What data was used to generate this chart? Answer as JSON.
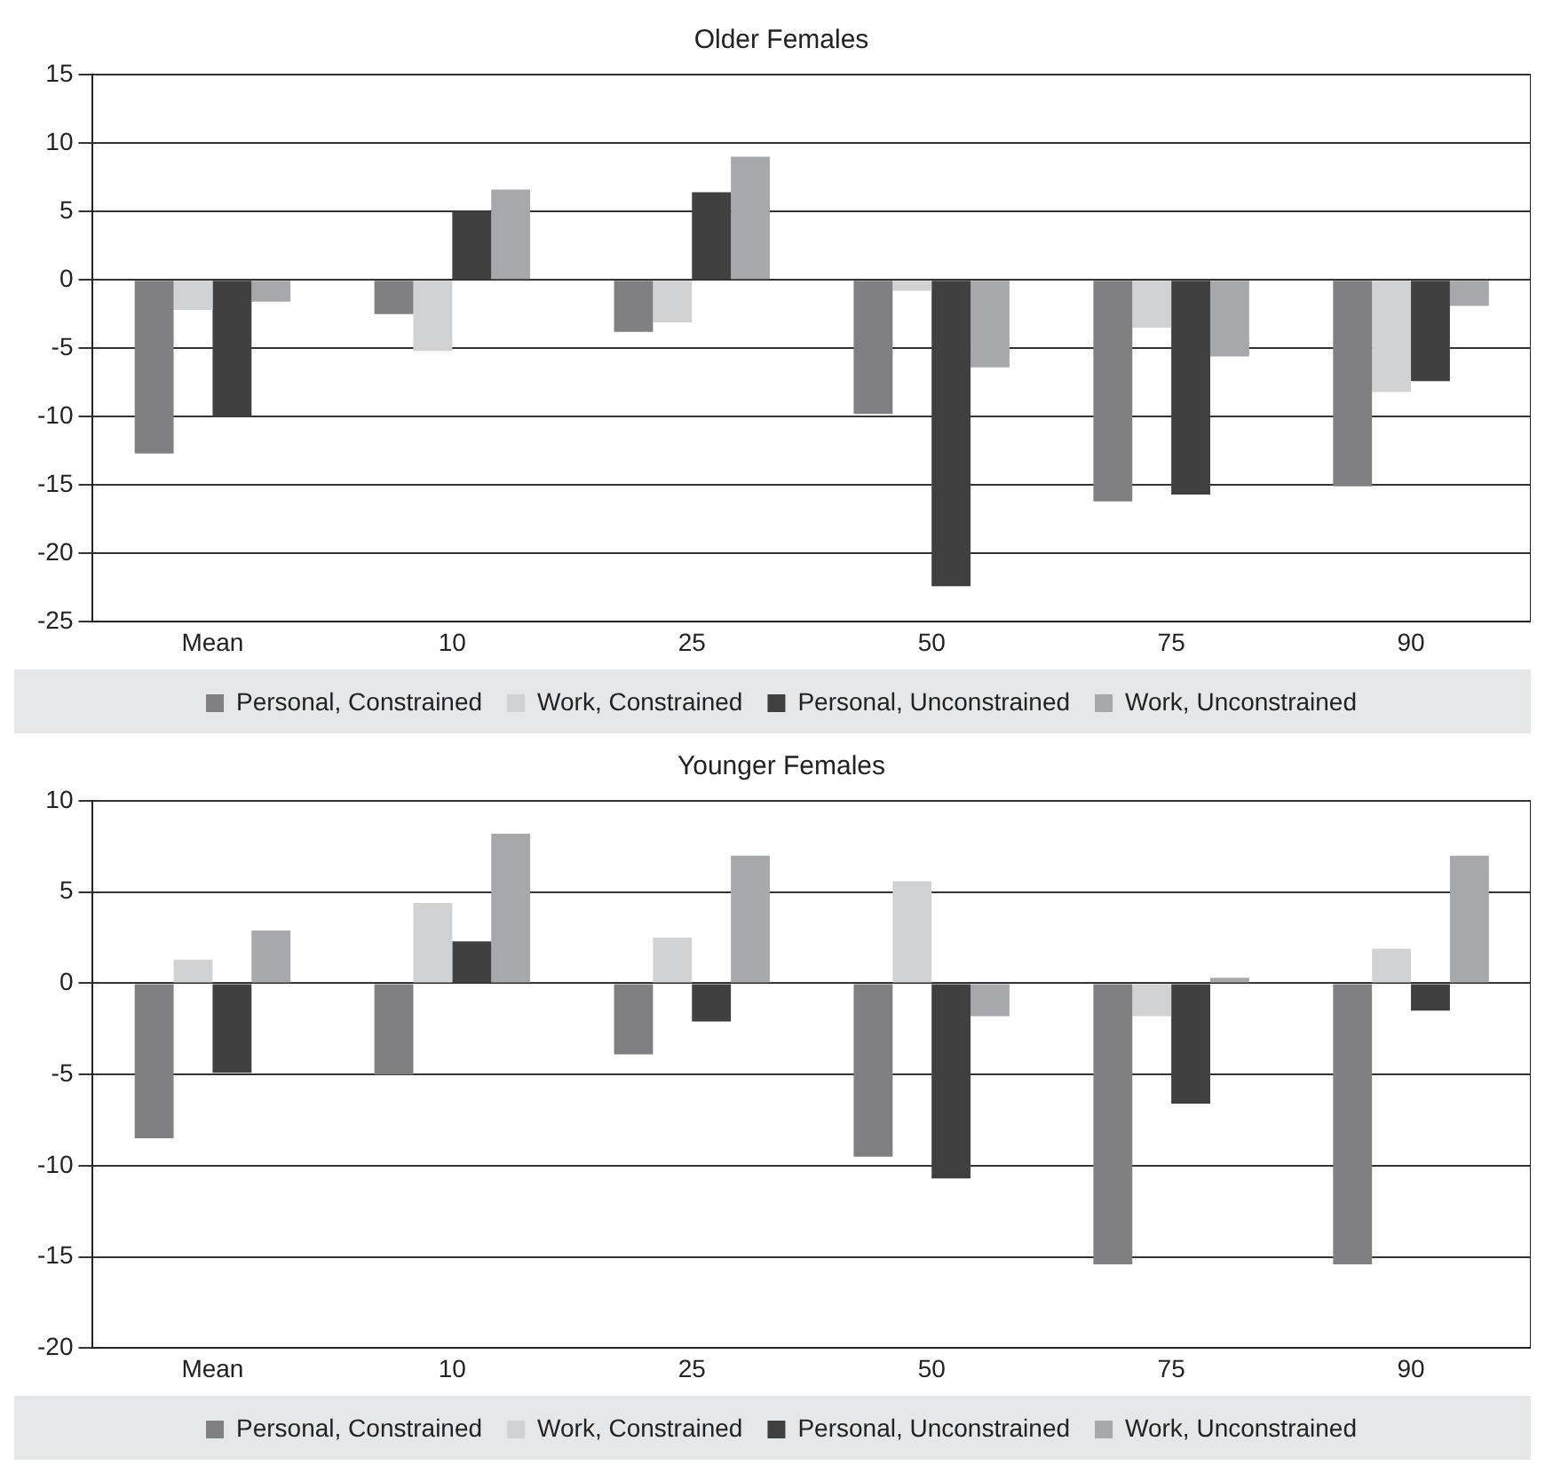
{
  "chart_data": [
    {
      "type": "bar",
      "title": "Older Females",
      "categories": [
        "Mean",
        "10",
        "25",
        "50",
        "75",
        "90"
      ],
      "series": [
        {
          "name": "Personal, Constrained",
          "color": "#808083",
          "values": [
            -12.7,
            -2.5,
            -3.8,
            -9.8,
            -16.2,
            -15.1
          ]
        },
        {
          "name": "Work, Constrained",
          "color": "#d1d2d4",
          "values": [
            -2.2,
            -5.2,
            -3.1,
            -0.8,
            -3.5,
            -8.2
          ]
        },
        {
          "name": "Personal, Unconstrained",
          "color": "#404040",
          "values": [
            -10,
            5,
            6.4,
            -22.4,
            -15.7,
            -7.4
          ]
        },
        {
          "name": "Work, Unconstrained",
          "color": "#a7a8ab",
          "values": [
            -1.6,
            6.6,
            9,
            -6.4,
            -5.6,
            -1.9
          ]
        }
      ],
      "ylim": [
        -25,
        15
      ],
      "yticks": [
        -25,
        -20,
        -15,
        -10,
        -5,
        0,
        5,
        10,
        15
      ],
      "grid": "y",
      "legend": "bottom"
    },
    {
      "type": "bar",
      "title": "Younger Females",
      "categories": [
        "Mean",
        "10",
        "25",
        "50",
        "75",
        "90"
      ],
      "series": [
        {
          "name": "Personal, Constrained",
          "color": "#808083",
          "values": [
            -8.5,
            -5,
            -3.9,
            -9.5,
            -15.4,
            -15.4
          ]
        },
        {
          "name": "Work, Constrained",
          "color": "#d1d2d4",
          "values": [
            1.3,
            4.4,
            2.5,
            5.6,
            -1.8,
            1.9
          ]
        },
        {
          "name": "Personal, Unconstrained",
          "color": "#404040",
          "values": [
            -4.9,
            2.3,
            -2.1,
            -10.7,
            -6.6,
            -1.5
          ]
        },
        {
          "name": "Work, Unconstrained",
          "color": "#a7a8ab",
          "values": [
            2.9,
            8.2,
            7,
            -1.8,
            0.3,
            7
          ]
        }
      ],
      "ylim": [
        -20,
        10
      ],
      "yticks": [
        -20,
        -15,
        -10,
        -5,
        0,
        5,
        10
      ],
      "grid": "y",
      "legend": "bottom"
    }
  ]
}
